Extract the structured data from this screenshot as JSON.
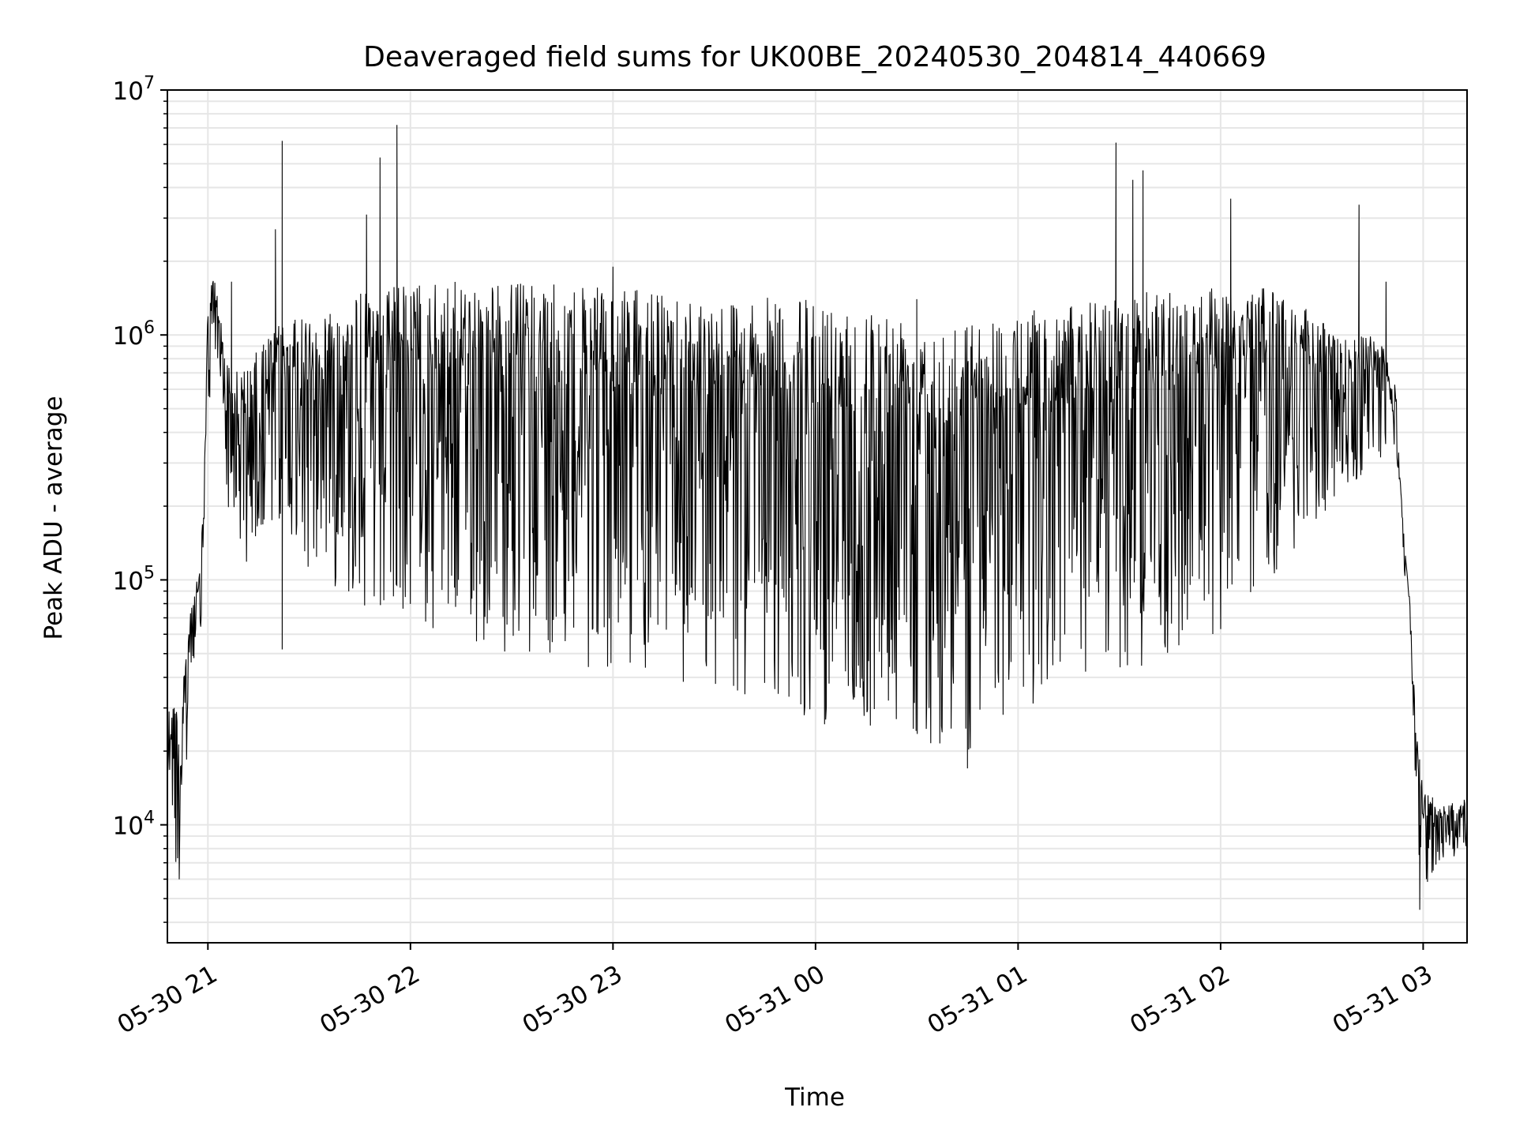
{
  "chart_data": {
    "type": "line",
    "title": "Deaveraged field sums for UK00BE_20240530_204814_440669",
    "xlabel": "Time",
    "ylabel": "Peak ADU - average",
    "x_range": [
      "2024-05-30 20:48",
      "2024-05-31 03:13"
    ],
    "yscale": "log",
    "ylim": [
      3300,
      10000000
    ],
    "x_ticks": [
      {
        "t": "2024-05-30 21:00",
        "label": "05-30 21"
      },
      {
        "t": "2024-05-30 22:00",
        "label": "05-30 22"
      },
      {
        "t": "2024-05-30 23:00",
        "label": "05-30 23"
      },
      {
        "t": "2024-05-31 00:00",
        "label": "05-31 00"
      },
      {
        "t": "2024-05-31 01:00",
        "label": "05-31 01"
      },
      {
        "t": "2024-05-31 02:00",
        "label": "05-31 02"
      },
      {
        "t": "2024-05-31 03:00",
        "label": "05-31 03"
      }
    ],
    "y_ticks": [
      {
        "value": 10000,
        "base": "10",
        "exp": "4"
      },
      {
        "value": 100000,
        "base": "10",
        "exp": "5"
      },
      {
        "value": 1000000,
        "base": "10",
        "exp": "6"
      },
      {
        "value": 10000000,
        "base": "10",
        "exp": "7"
      }
    ],
    "grid": true,
    "line_color": "#000000",
    "grid_color": "#e6e6e6",
    "series": [
      {
        "style": "dense noisy trace between an upper envelope and frequent downward spikes",
        "envelope": [
          {
            "t": "2024-05-30 20:48",
            "upper": 40000,
            "lower": 12000
          },
          {
            "t": "2024-05-30 20:52",
            "upper": 30000,
            "lower": 4500
          },
          {
            "t": "2024-05-30 20:55",
            "upper": 85000,
            "lower": 40000
          },
          {
            "t": "2024-05-30 20:58",
            "upper": 120000,
            "lower": 50000
          },
          {
            "t": "2024-05-30 21:00",
            "upper": 1400000,
            "lower": 400000
          },
          {
            "t": "2024-05-30 21:02",
            "upper": 1800000,
            "lower": 900000
          },
          {
            "t": "2024-05-30 21:05",
            "upper": 900000,
            "lower": 250000
          },
          {
            "t": "2024-05-30 21:10",
            "upper": 700000,
            "lower": 80000
          },
          {
            "t": "2024-05-30 21:20",
            "upper": 1100000,
            "lower": 180000
          },
          {
            "t": "2024-05-30 21:30",
            "upper": 1200000,
            "lower": 110000
          },
          {
            "t": "2024-05-30 21:45",
            "upper": 1500000,
            "lower": 80000
          },
          {
            "t": "2024-05-30 22:00",
            "upper": 1650000,
            "lower": 60000
          },
          {
            "t": "2024-05-30 22:30",
            "upper": 1650000,
            "lower": 50000
          },
          {
            "t": "2024-05-30 23:00",
            "upper": 1550000,
            "lower": 42000
          },
          {
            "t": "2024-05-30 23:30",
            "upper": 1450000,
            "lower": 34000
          },
          {
            "t": "2024-05-31 00:00",
            "upper": 1400000,
            "lower": 26000
          },
          {
            "t": "2024-05-31 00:30",
            "upper": 1250000,
            "lower": 22000
          },
          {
            "t": "2024-05-31 00:45",
            "upper": 1150000,
            "lower": 20000
          },
          {
            "t": "2024-05-31 01:00",
            "upper": 1250000,
            "lower": 28000
          },
          {
            "t": "2024-05-31 01:30",
            "upper": 1450000,
            "lower": 38000
          },
          {
            "t": "2024-05-31 02:00",
            "upper": 1650000,
            "lower": 60000
          },
          {
            "t": "2024-05-31 02:20",
            "upper": 1500000,
            "lower": 120000
          },
          {
            "t": "2024-05-31 02:35",
            "upper": 1000000,
            "lower": 220000
          },
          {
            "t": "2024-05-31 02:47",
            "upper": 1000000,
            "lower": 300000
          },
          {
            "t": "2024-05-31 02:52",
            "upper": 600000,
            "lower": 350000
          },
          {
            "t": "2024-05-31 02:54",
            "upper": 170000,
            "lower": 120000
          },
          {
            "t": "2024-05-31 02:56",
            "upper": 85000,
            "lower": 60000
          },
          {
            "t": "2024-05-31 02:58",
            "upper": 25000,
            "lower": 10000
          },
          {
            "t": "2024-05-31 03:00",
            "upper": 14000,
            "lower": 4500
          },
          {
            "t": "2024-05-31 03:06",
            "upper": 12000,
            "lower": 7000
          },
          {
            "t": "2024-05-31 03:13",
            "upper": 13000,
            "lower": 8000
          }
        ],
        "spikes": [
          {
            "t": "2024-05-30 21:07",
            "value": 1650000
          },
          {
            "t": "2024-05-30 21:20",
            "value": 2700000
          },
          {
            "t": "2024-05-30 21:22",
            "value": 6200000
          },
          {
            "t": "2024-05-30 21:22",
            "value": 52000
          },
          {
            "t": "2024-05-30 21:47",
            "value": 3100000
          },
          {
            "t": "2024-05-30 21:51",
            "value": 5300000
          },
          {
            "t": "2024-05-30 21:56",
            "value": 7200000
          },
          {
            "t": "2024-05-30 23:00",
            "value": 1900000
          },
          {
            "t": "2024-05-31 00:30",
            "value": 1400000
          },
          {
            "t": "2024-05-31 00:45",
            "value": 17000
          },
          {
            "t": "2024-05-31 01:29",
            "value": 6100000
          },
          {
            "t": "2024-05-31 01:34",
            "value": 4300000
          },
          {
            "t": "2024-05-31 01:37",
            "value": 4700000
          },
          {
            "t": "2024-05-31 02:03",
            "value": 3600000
          },
          {
            "t": "2024-05-31 02:41",
            "value": 3400000
          },
          {
            "t": "2024-05-31 02:49",
            "value": 1650000
          },
          {
            "t": "2024-05-31 02:59",
            "value": 4500
          }
        ]
      }
    ]
  }
}
